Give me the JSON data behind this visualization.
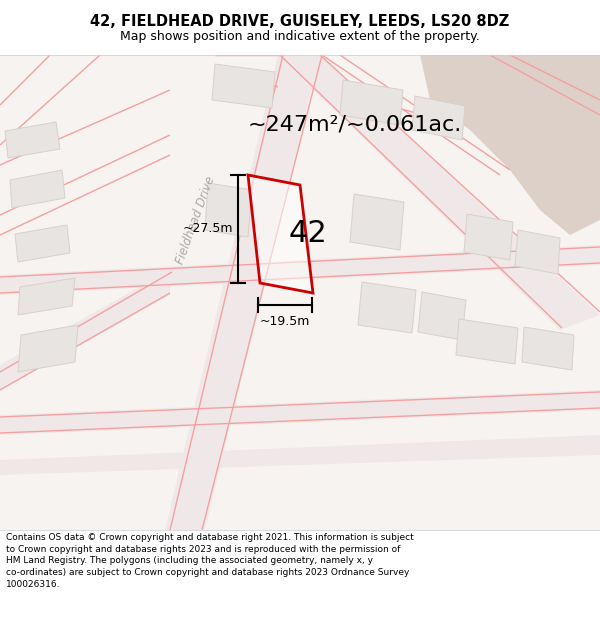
{
  "title": "42, FIELDHEAD DRIVE, GUISELEY, LEEDS, LS20 8DZ",
  "subtitle": "Map shows position and indicative extent of the property.",
  "footer": "Contains OS data © Crown copyright and database right 2021. This information is subject to Crown copyright and database rights 2023 and is reproduced with the permission of HM Land Registry. The polygons (including the associated geometry, namely x, y co-ordinates) are subject to Crown copyright and database rights 2023 Ordnance Survey 100026316.",
  "area_label": "~247m²/~0.061ac.",
  "width_label": "~19.5m",
  "height_label": "~27.5m",
  "number_label": "42",
  "map_bg": "#f5f0ee",
  "road_fill": "#f0e8e8",
  "road_line": "#f5a0a0",
  "building_fill": "#e8e4e2",
  "building_edge": "#d8d0cc",
  "highlight_color": "#cc0000",
  "beige_fill": "#ddd0c8",
  "street_label": "Fieldhead Drive",
  "title_fontsize": 10.5,
  "subtitle_fontsize": 9,
  "area_fontsize": 16,
  "number_fontsize": 22,
  "dim_fontsize": 9,
  "footer_fontsize": 6.5
}
